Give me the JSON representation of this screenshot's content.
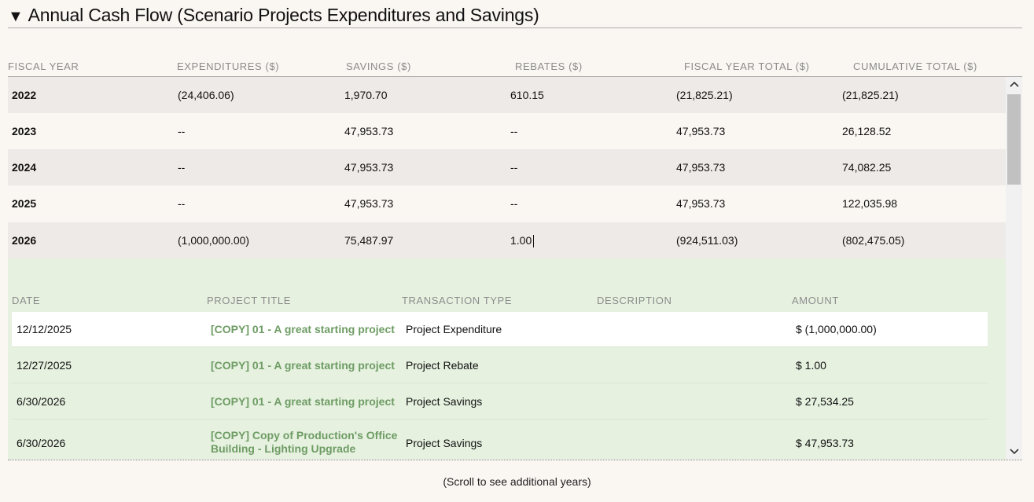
{
  "section": {
    "arrow": "▼",
    "title": "Annual Cash Flow (Scenario Projects Expenditures and Savings)"
  },
  "columns": [
    "FISCAL YEAR",
    "EXPENDITURES ($)",
    "SAVINGS ($)",
    "REBATES ($)",
    "FISCAL YEAR TOTAL ($)",
    "CUMULATIVE TOTAL ($)"
  ],
  "rows": [
    {
      "year": "2022",
      "expenditures": "(24,406.06)",
      "savings": "1,970.70",
      "rebates": "610.15",
      "fy_total": "(21,825.21)",
      "cumulative": "(21,825.21)"
    },
    {
      "year": "2023",
      "expenditures": "--",
      "savings": "47,953.73",
      "rebates": "--",
      "fy_total": "47,953.73",
      "cumulative": "26,128.52"
    },
    {
      "year": "2024",
      "expenditures": "--",
      "savings": "47,953.73",
      "rebates": "--",
      "fy_total": "47,953.73",
      "cumulative": "74,082.25"
    },
    {
      "year": "2025",
      "expenditures": "--",
      "savings": "47,953.73",
      "rebates": "--",
      "fy_total": "47,953.73",
      "cumulative": "122,035.98"
    },
    {
      "year": "2026",
      "expenditures": "(1,000,000.00)",
      "savings": "75,487.97",
      "rebates": "1.00",
      "fy_total": "(924,511.03)",
      "cumulative": "(802,475.05)"
    }
  ],
  "detail": {
    "columns": [
      "DATE",
      "PROJECT TITLE",
      "TRANSACTION TYPE",
      "DESCRIPTION",
      "AMOUNT"
    ],
    "rows": [
      {
        "date": "12/12/2025",
        "project_line1": "[COPY] 01 - A great starting project",
        "project_line2": "",
        "type": "Project Expenditure",
        "description": "",
        "amount": "$ (1,000,000.00)"
      },
      {
        "date": "12/27/2025",
        "project_line1": "[COPY] 01 - A great starting project",
        "project_line2": "",
        "type": "Project Rebate",
        "description": "",
        "amount": "$ 1.00"
      },
      {
        "date": "6/30/2026",
        "project_line1": "[COPY] 01 - A great starting project",
        "project_line2": "",
        "type": "Project Savings",
        "description": "",
        "amount": "$ 27,534.25"
      },
      {
        "date": "6/30/2026",
        "project_line1": "[COPY] Copy of Production's Office",
        "project_line2": "Building - Lighting Upgrade",
        "type": "Project Savings",
        "description": "",
        "amount": "$ 47,953.73"
      }
    ]
  },
  "scrollbar": {
    "up": "⌃",
    "down": "⌄"
  },
  "footer_note": "(Scroll to see additional years)"
}
